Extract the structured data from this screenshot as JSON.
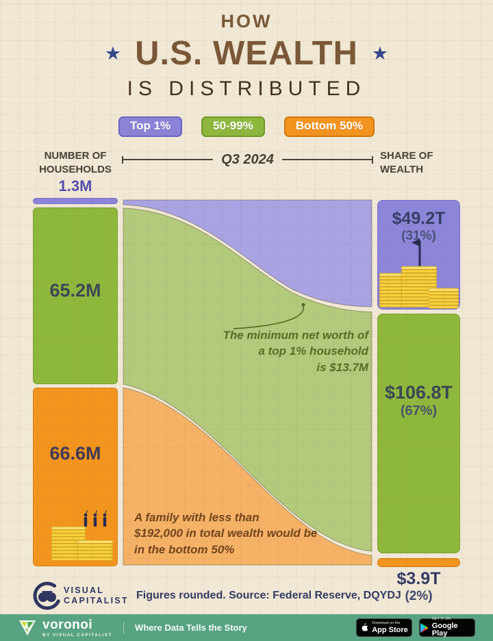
{
  "title": {
    "kicker": "HOW",
    "main": "U.S. WEALTH",
    "sub": "IS DISTRIBUTED",
    "star": "★"
  },
  "legend": {
    "items": [
      {
        "label": "Top 1%",
        "color": "#8b83d7"
      },
      {
        "label": "50-99%",
        "color": "#8db83d"
      },
      {
        "label": "Bottom 50%",
        "color": "#f3941f"
      }
    ]
  },
  "columns": {
    "left_header_line1": "NUMBER OF",
    "left_header_line2": "HOUSEHOLDS",
    "period": "Q3 2024",
    "right_header_line1": "SHARE OF",
    "right_header_line2": "WEALTH"
  },
  "chart_data": {
    "type": "sankey",
    "title": "How U.S. Wealth Is Distributed",
    "period": "Q3 2024",
    "categories": [
      "Top 1%",
      "50-99%",
      "Bottom 50%"
    ],
    "left_axis_label": "Number of Households",
    "right_axis_label": "Share of Wealth",
    "households_millions": [
      1.3,
      65.2,
      66.6
    ],
    "household_labels": [
      "1.3M",
      "65.2M",
      "66.6M"
    ],
    "wealth_trillions": [
      49.2,
      106.8,
      3.9
    ],
    "wealth_share_pct": [
      31,
      67,
      2
    ],
    "wealth_value_labels": [
      "$49.2T",
      "$106.8T",
      "$3.9T"
    ],
    "wealth_pct_labels": [
      "(31%)",
      "(67%)",
      "(2%)"
    ],
    "colors": {
      "top1": "#8b83d7",
      "mid": "#8db83d",
      "bottom50": "#f3941f",
      "flow_top1": "#a9a2e3",
      "flow_mid": "#b3c97c",
      "flow_bottom50": "#f5b166",
      "background": "#f0e8d5"
    }
  },
  "annotations": {
    "top1": {
      "line1": "The minimum net worth of",
      "line2": "a top 1% household",
      "line3": "is $13.7M"
    },
    "bottom50": {
      "line1": "A family with less than",
      "line2": "$192,000 in total wealth would be",
      "line3": "in the bottom 50%"
    }
  },
  "footer": {
    "brand_line1": "VISUAL",
    "brand_line2": "CAPITALIST",
    "source": "Figures rounded. Source: Federal Reserve, DQYDJ"
  },
  "bottom_bar": {
    "brand": "voronoi",
    "brand_sub": "BY VISUAL CAPITALIST",
    "tagline": "Where Data Tells the Story",
    "appstore_line1": "Download on the",
    "appstore_line2": "App Store",
    "googleplay_line1": "GET IT ON",
    "googleplay_line2": "Google Play"
  }
}
